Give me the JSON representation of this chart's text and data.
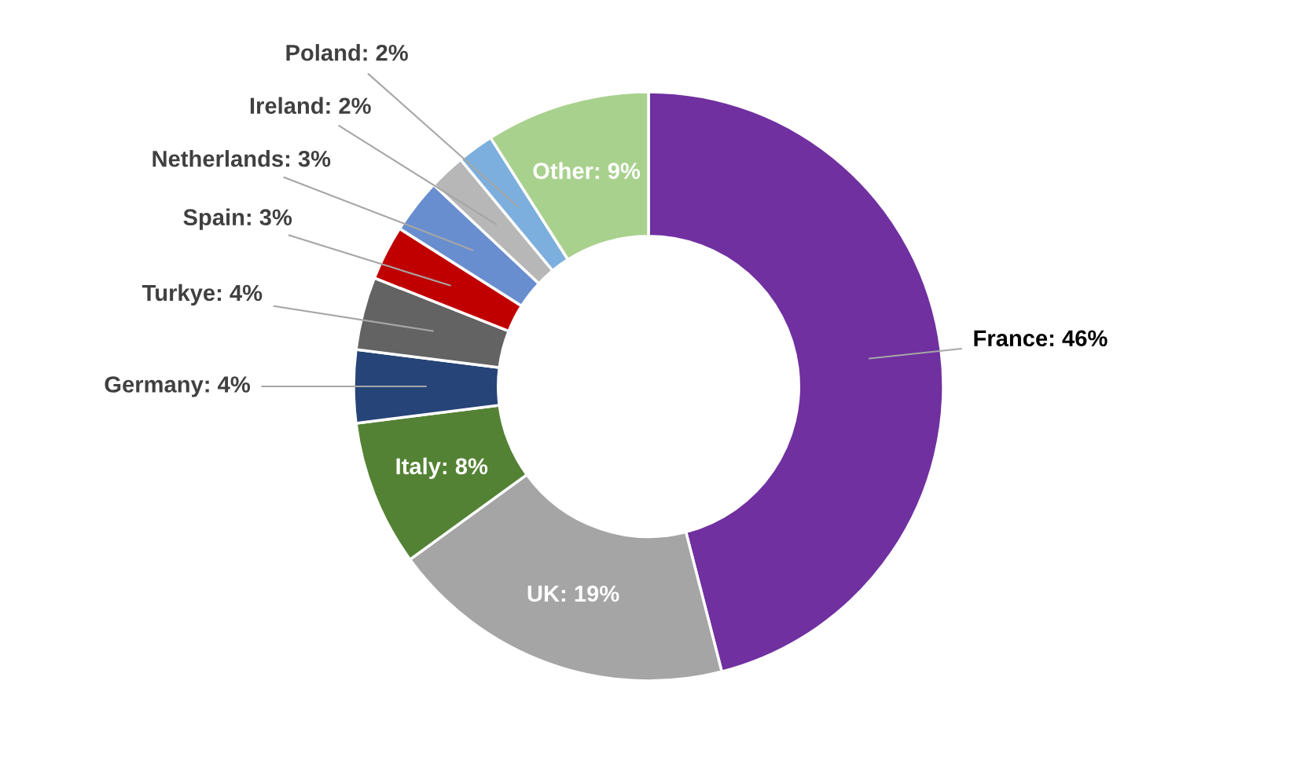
{
  "chart_data": {
    "type": "donut",
    "categories": [
      "France",
      "UK",
      "Italy",
      "Germany",
      "Turkye",
      "Spain",
      "Netherlands",
      "Ireland",
      "Poland",
      "Other"
    ],
    "values": [
      46,
      19,
      8,
      4,
      4,
      3,
      3,
      2,
      2,
      9
    ],
    "value_labels": [
      "46%",
      "19%",
      "8%",
      "4%",
      "4%",
      "3%",
      "3%",
      "2%",
      "2%",
      "9%"
    ],
    "colors": [
      "#7030a0",
      "#a5a5a5",
      "#548235",
      "#264478",
      "#636363",
      "#c00000",
      "#698ed0",
      "#b7b7b7",
      "#7cafdd",
      "#a9d18e"
    ]
  }
}
